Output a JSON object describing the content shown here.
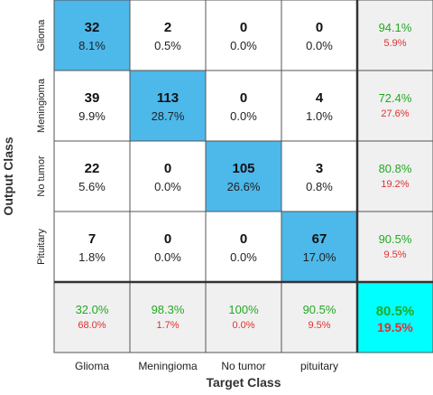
{
  "chart_data": {
    "type": "heatmap",
    "subtype": "confusion-matrix",
    "xlabel": "Target Class",
    "ylabel": "Output Class",
    "target_classes": [
      "Glioma",
      "Meningioma",
      "No tumor",
      "pituitary"
    ],
    "output_classes": [
      "Glioma",
      "Meningioma",
      "No tumor",
      "Pituitary"
    ],
    "counts": [
      [
        32,
        2,
        0,
        0
      ],
      [
        39,
        113,
        0,
        4
      ],
      [
        22,
        0,
        105,
        3
      ],
      [
        7,
        0,
        0,
        67
      ]
    ],
    "percents": [
      [
        "8.1%",
        "0.5%",
        "0.0%",
        "0.0%"
      ],
      [
        "9.9%",
        "28.7%",
        "0.0%",
        "1.0%"
      ],
      [
        "5.6%",
        "0.0%",
        "26.6%",
        "0.8%"
      ],
      [
        "1.8%",
        "0.0%",
        "0.0%",
        "17.0%"
      ]
    ],
    "row_summary": [
      {
        "correct": "94.1%",
        "wrong": "5.9%"
      },
      {
        "correct": "72.4%",
        "wrong": "27.6%"
      },
      {
        "correct": "80.8%",
        "wrong": "19.2%"
      },
      {
        "correct": "90.5%",
        "wrong": "9.5%"
      }
    ],
    "col_summary": [
      {
        "correct": "32.0%",
        "wrong": "68.0%"
      },
      {
        "correct": "98.3%",
        "wrong": "1.7%"
      },
      {
        "correct": "100%",
        "wrong": "0.0%"
      },
      {
        "correct": "90.5%",
        "wrong": "9.5%"
      }
    ],
    "overall": {
      "correct": "80.5%",
      "wrong": "19.5%"
    }
  },
  "colors": {
    "diagonal": "#4db8ea",
    "offdiag": "#ffffff",
    "summary": "#f0f0f0",
    "overall": "#00ffff",
    "correct_text": "#22aa22",
    "wrong_text": "#e03030",
    "grid": "#555555"
  }
}
